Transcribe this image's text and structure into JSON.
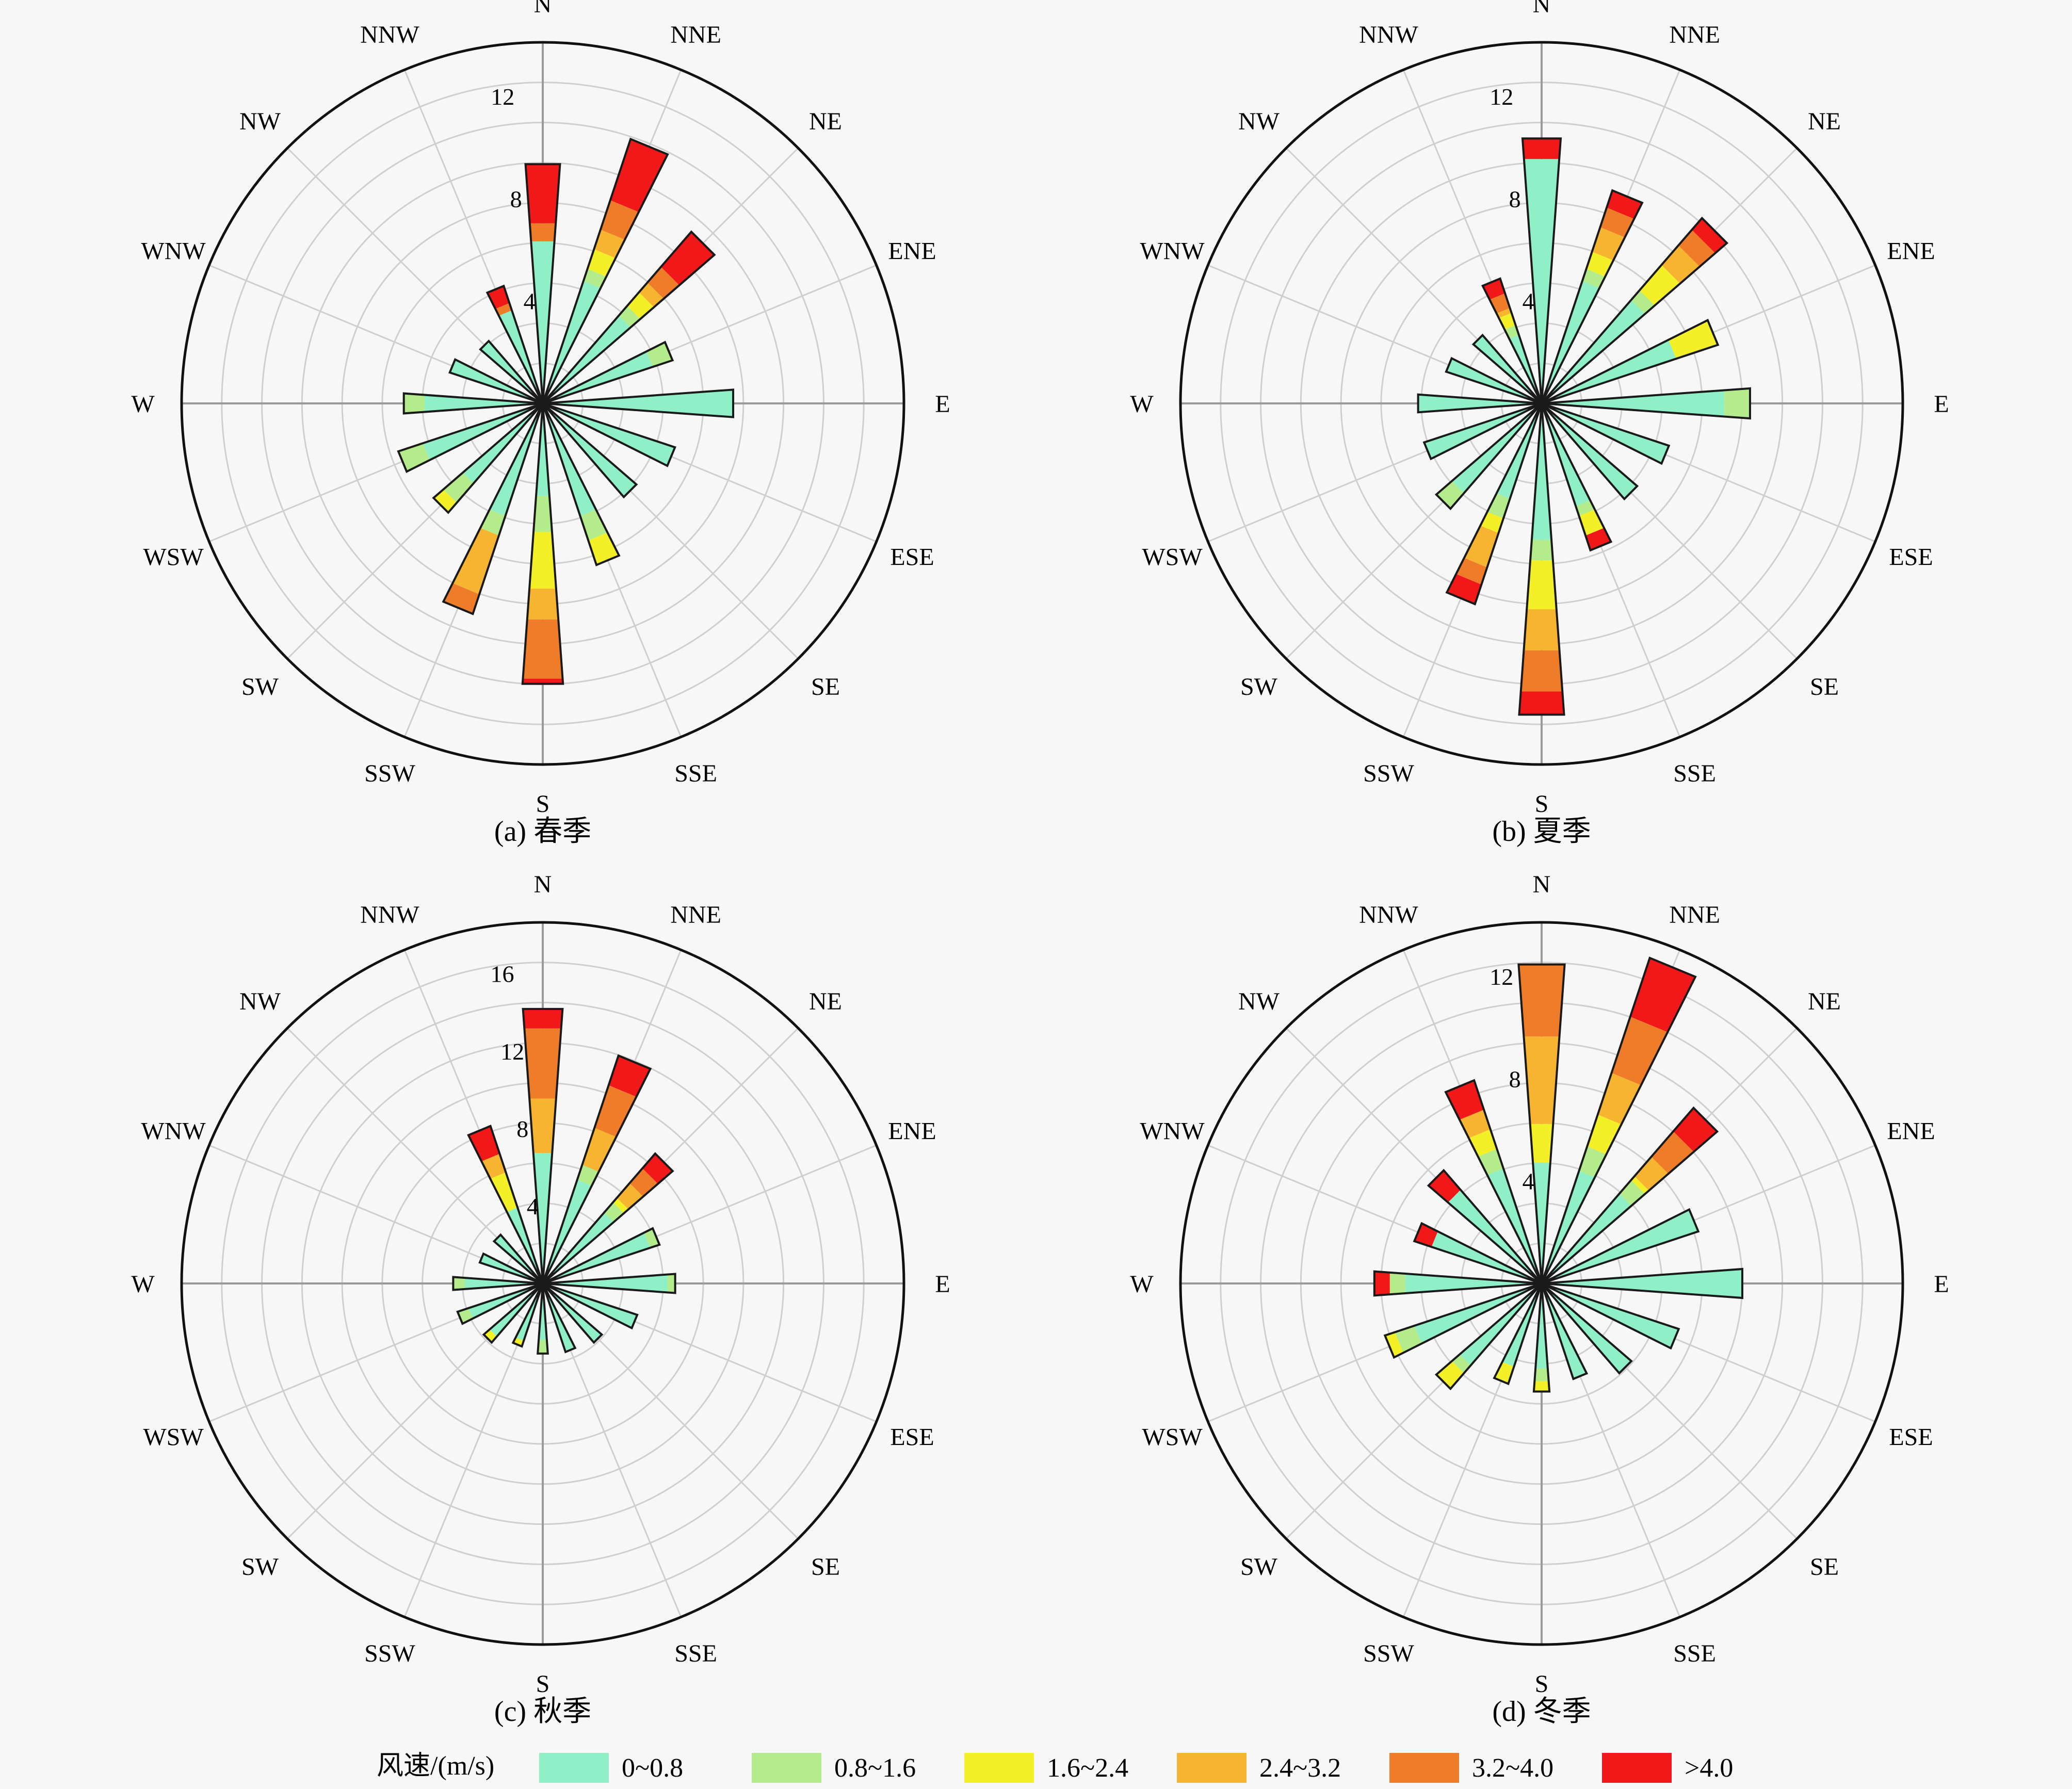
{
  "legend": {
    "title": "风速/(m/s)",
    "bins": [
      {
        "label": "0~0.8",
        "color": "#8ff0c8"
      },
      {
        "label": "0.8~1.6",
        "color": "#b4ec8c"
      },
      {
        "label": "1.6~2.4",
        "color": "#f4f028"
      },
      {
        "label": "2.4~3.2",
        "color": "#f6b430"
      },
      {
        "label": "3.2~4.0",
        "color": "#ee7c28"
      },
      {
        "label": ">4.0",
        "color": "#f01818"
      }
    ]
  },
  "chart_data": [
    {
      "type": "wind-rose",
      "caption": "(a) 春季",
      "directions": [
        "N",
        "NNE",
        "NE",
        "ENE",
        "E",
        "ESE",
        "SE",
        "SSE",
        "S",
        "SSW",
        "SW",
        "WSW",
        "W",
        "WNW",
        "NW",
        "NNW"
      ],
      "radial_ticks": [
        4,
        8,
        12
      ],
      "rmax": 14,
      "frequencies": [
        [
          6.3,
          0,
          0,
          0,
          0.7,
          2.3
        ],
        [
          5,
          0.5,
          0.8,
          0.8,
          1.2,
          2.5
        ],
        [
          4.5,
          0.5,
          0.7,
          0.5,
          0.8,
          1.8
        ],
        [
          4.5,
          0.8,
          0,
          0,
          0,
          0
        ],
        [
          7.4,
          0,
          0,
          0,
          0,
          0
        ],
        [
          5.4,
          0,
          0,
          0,
          0,
          0
        ],
        [
          4.8,
          0,
          0,
          0,
          0,
          0
        ],
        [
          4.6,
          1,
          1,
          0,
          0,
          0
        ],
        [
          3.6,
          1.4,
          2.2,
          1.2,
          2.3,
          0.2
        ],
        [
          4.6,
          0.8,
          0,
          2.4,
          0.8,
          0
        ],
        [
          4.1,
          1,
          0.5,
          0,
          0,
          0
        ],
        [
          4.9,
          1,
          0,
          0,
          0,
          0
        ],
        [
          4.6,
          0.8,
          0,
          0,
          0,
          0
        ],
        [
          3.8,
          0,
          0,
          0,
          0,
          0
        ],
        [
          3.2,
          0,
          0,
          0,
          0,
          0
        ],
        [
          3.8,
          0,
          0,
          0,
          0.3,
          0.7
        ]
      ]
    },
    {
      "type": "wind-rose",
      "caption": "(b) 夏季",
      "directions": [
        "N",
        "NNE",
        "NE",
        "ENE",
        "E",
        "ESE",
        "SE",
        "SSE",
        "S",
        "SSW",
        "SW",
        "WSW",
        "W",
        "WNW",
        "NW",
        "NNW"
      ],
      "radial_ticks": [
        4,
        8,
        12
      ],
      "rmax": 14,
      "frequencies": [
        [
          9.5,
          0,
          0,
          0,
          0,
          0.8
        ],
        [
          5,
          0.5,
          0.7,
          1,
          0.8,
          0.7
        ],
        [
          5.3,
          0.5,
          1.3,
          1,
          0.8,
          0.6
        ],
        [
          5.5,
          0,
          1.7,
          0,
          0,
          0
        ],
        [
          7.1,
          1,
          0,
          0,
          0,
          0
        ],
        [
          5.2,
          0,
          0,
          0,
          0,
          0
        ],
        [
          4.9,
          0,
          0,
          0,
          0,
          0
        ],
        [
          4.2,
          0.4,
          0.8,
          0,
          0,
          0.6
        ],
        [
          5.3,
          0.8,
          1.9,
          1.6,
          1.6,
          0.9
        ],
        [
          3.9,
          0.8,
          0.6,
          1.4,
          0.7,
          0.8
        ],
        [
          4.6,
          0.8,
          0,
          0,
          0,
          0
        ],
        [
          4.8,
          0,
          0,
          0,
          0,
          0
        ],
        [
          4.8,
          0,
          0,
          0,
          0,
          0
        ],
        [
          3.9,
          0,
          0,
          0,
          0,
          0
        ],
        [
          3.5,
          0,
          0,
          0,
          0,
          0
        ],
        [
          2.8,
          0.4,
          0.5,
          0.2,
          0.6,
          0.6
        ]
      ]
    },
    {
      "type": "wind-rose",
      "caption": "(c) 秋季",
      "directions": [
        "N",
        "NNE",
        "NE",
        "ENE",
        "E",
        "ESE",
        "SE",
        "SSE",
        "S",
        "SSW",
        "SW",
        "WSW",
        "W",
        "WNW",
        "NW",
        "NNW"
      ],
      "radial_ticks": [
        4,
        8,
        12,
        16
      ],
      "rmax": 18.5,
      "frequencies": [
        [
          6.7,
          0,
          0,
          2.8,
          3.6,
          1
        ],
        [
          5.6,
          0.8,
          0,
          2,
          2.3,
          1.6
        ],
        [
          4.8,
          0.7,
          0.3,
          1,
          1,
          1
        ],
        [
          5.8,
          0.5,
          0,
          0,
          0,
          0
        ],
        [
          6.4,
          0.4,
          0,
          0,
          0,
          0
        ],
        [
          5.1,
          0,
          0,
          0,
          0,
          0
        ],
        [
          4,
          0,
          0,
          0,
          0,
          0
        ],
        [
          3.7,
          0,
          0,
          0,
          0,
          0
        ],
        [
          2.9,
          0.7,
          0,
          0,
          0,
          0
        ],
        [
          3.1,
          0,
          0.3,
          0,
          0,
          0
        ],
        [
          3.6,
          0,
          0.4,
          0,
          0,
          0
        ],
        [
          4,
          0.6,
          0,
          0,
          0,
          0
        ],
        [
          4,
          0.6,
          0,
          0,
          0,
          0
        ],
        [
          3.4,
          0,
          0,
          0,
          0,
          0
        ],
        [
          3.3,
          0,
          0,
          0,
          0,
          0
        ],
        [
          4.1,
          0,
          1.9,
          1,
          0,
          1.5
        ]
      ]
    },
    {
      "type": "wind-rose",
      "caption": "(d) 冬季",
      "directions": [
        "N",
        "NNE",
        "NE",
        "ENE",
        "E",
        "ESE",
        "SE",
        "SSE",
        "S",
        "SSW",
        "SW",
        "WSW",
        "W",
        "WNW",
        "NW",
        "NNW"
      ],
      "radial_ticks": [
        4,
        8,
        12
      ],
      "rmax": 14,
      "frequencies": [
        [
          4.7,
          0,
          1.5,
          3.4,
          2.8,
          0
        ],
        [
          4.6,
          1,
          1.3,
          1.7,
          2.3,
          2.4
        ],
        [
          4.6,
          0.7,
          0.2,
          1,
          1.3,
          1.2
        ],
        [
          6.4,
          0,
          0,
          0,
          0,
          0
        ],
        [
          7.8,
          0,
          0,
          0,
          0,
          0
        ],
        [
          5.6,
          0,
          0,
          0,
          0,
          0
        ],
        [
          4.6,
          0,
          0,
          0,
          0,
          0
        ],
        [
          3.9,
          0,
          0,
          0,
          0,
          0
        ],
        [
          3.3,
          0.5,
          0.4,
          0,
          0,
          0
        ],
        [
          3.4,
          0,
          0.7,
          0,
          0,
          0
        ],
        [
          4.2,
          0.4,
          0.8,
          0,
          0,
          0
        ],
        [
          5.2,
          0.8,
          0.4,
          0,
          0,
          0
        ],
        [
          5.3,
          0.6,
          0,
          0,
          0,
          0.6
        ],
        [
          4.5,
          0,
          0,
          0,
          0,
          0.7
        ],
        [
          4.8,
          0,
          0,
          0,
          0,
          1
        ],
        [
          4.7,
          0.8,
          0.8,
          0.8,
          0,
          1.2
        ]
      ]
    }
  ]
}
